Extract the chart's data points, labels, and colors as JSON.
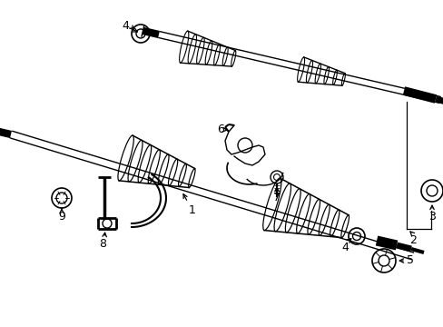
{
  "background_color": "#ffffff",
  "line_color": "#000000",
  "label_color": "#000000",
  "fig_width": 4.89,
  "fig_height": 3.6,
  "dpi": 100
}
